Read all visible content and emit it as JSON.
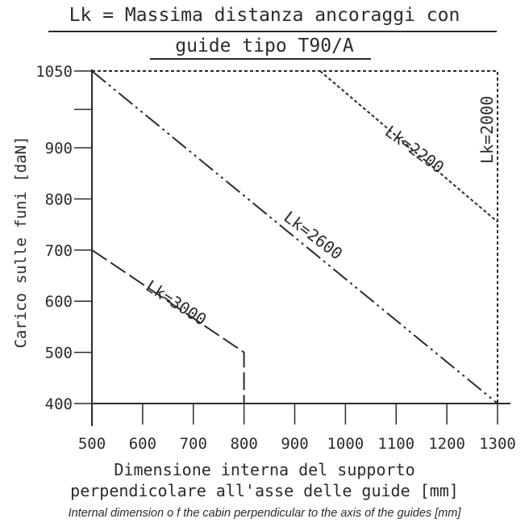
{
  "chart_data": {
    "type": "line",
    "title": "Lk = Massima distanza ancoraggi con",
    "subtitle": "guide tipo T90/A",
    "xlabel": "Dimensione interna del supporto",
    "xlabel_line2": "perpendicolare all'asse delle guide [mm]",
    "xlabel_en": "Internal dimension o f the cabin perpendicular to the axis of the guides [mm]",
    "ylabel": "Carico sulle funi [daN]",
    "xlim": [
      500,
      1300
    ],
    "ylim": [
      400,
      1050
    ],
    "x_ticks": [
      500,
      600,
      700,
      800,
      900,
      1000,
      1100,
      1200,
      1300
    ],
    "y_ticks": [
      400,
      500,
      600,
      700,
      800,
      900,
      1050
    ],
    "x_tick_labels": [
      "500",
      "600",
      "700",
      "800",
      "900",
      "1000",
      "1100",
      "1200",
      "1300"
    ],
    "y_tick_labels": [
      "400",
      "500",
      "600",
      "700",
      "800",
      "900",
      "1050"
    ],
    "grid": false,
    "series": [
      {
        "name": "Lk=3000",
        "style": "long-dash",
        "x": [
          500,
          800,
          800
        ],
        "y": [
          700,
          500,
          400
        ]
      },
      {
        "name": "Lk=2600",
        "style": "dash-dot-dot",
        "x": [
          500,
          1300
        ],
        "y": [
          1050,
          400
        ]
      },
      {
        "name": "Lk=2200",
        "style": "dotted",
        "x": [
          950,
          1300
        ],
        "y": [
          1050,
          755
        ]
      },
      {
        "name": "Lk=2000",
        "style": "dotted",
        "x": [
          500,
          1300,
          1300
        ],
        "y": [
          1050,
          1050,
          400
        ]
      }
    ],
    "annotations": [
      {
        "text": "Lk=3000",
        "x": 665,
        "y": 595,
        "angle": 33
      },
      {
        "text": "Lk=2600",
        "x": 935,
        "y": 727,
        "angle": 37
      },
      {
        "text": "Lk=2200",
        "x": 1135,
        "y": 895,
        "angle": 36
      },
      {
        "text": "Lk=2000",
        "x": 1282,
        "y": 935,
        "angle": -90
      }
    ]
  }
}
